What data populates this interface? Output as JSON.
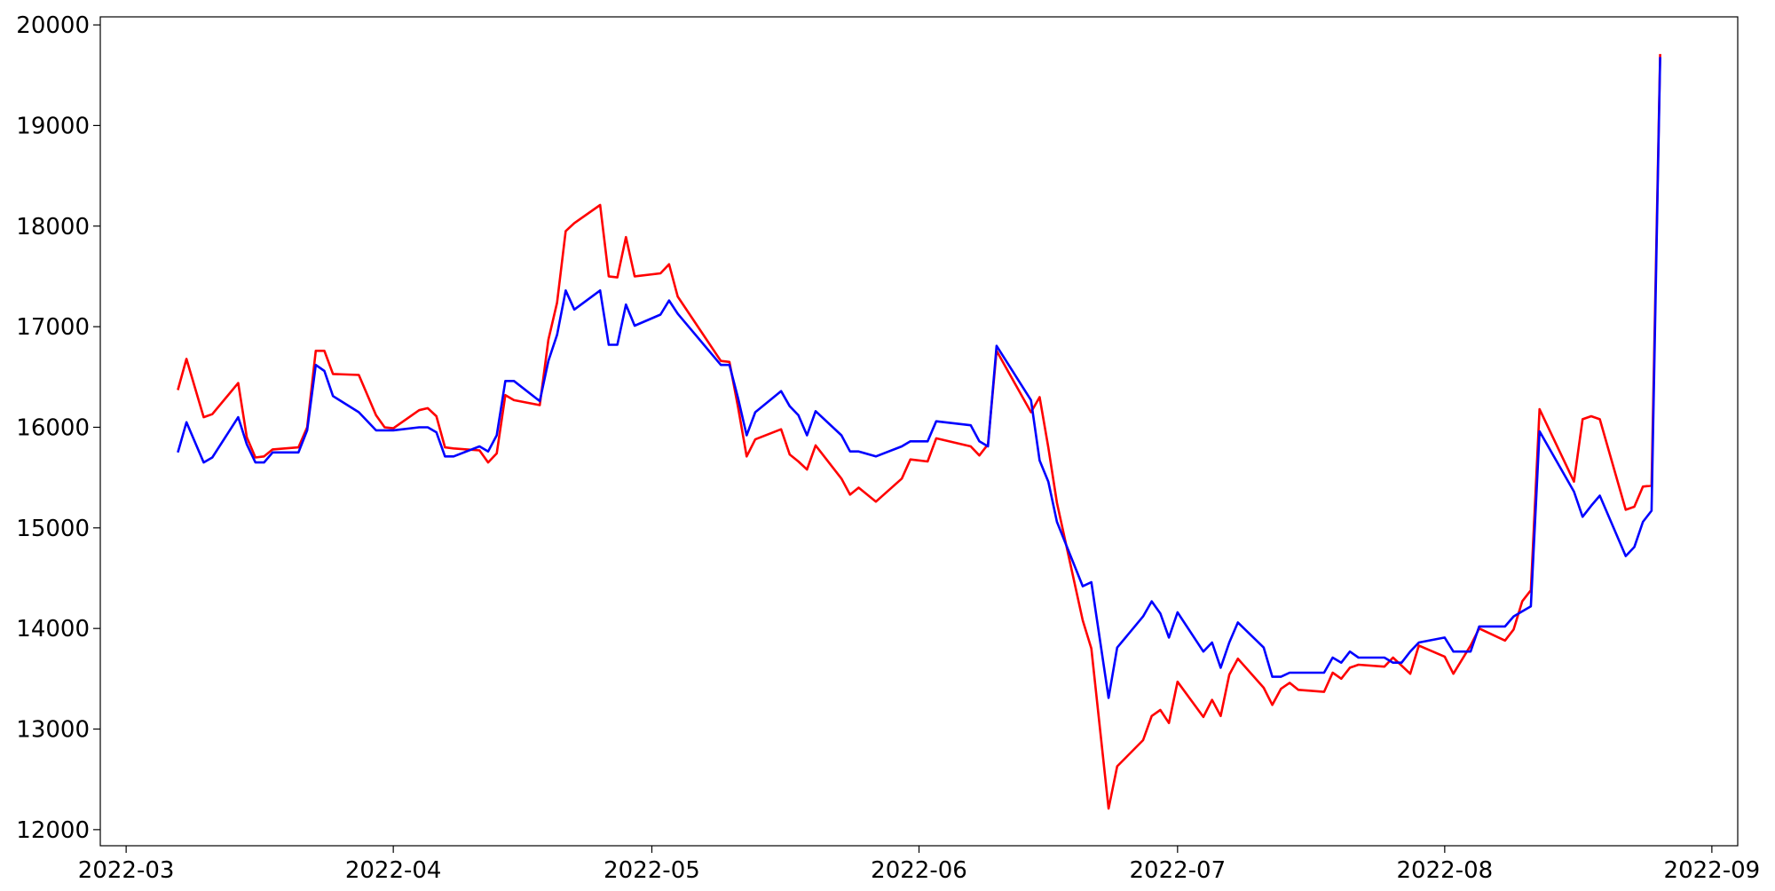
{
  "chart_data": {
    "type": "line",
    "x": [
      "2022-03-07",
      "2022-03-08",
      "2022-03-10",
      "2022-03-11",
      "2022-03-14",
      "2022-03-15",
      "2022-03-16",
      "2022-03-17",
      "2022-03-18",
      "2022-03-21",
      "2022-03-22",
      "2022-03-23",
      "2022-03-24",
      "2022-03-25",
      "2022-03-28",
      "2022-03-30",
      "2022-03-31",
      "2022-04-01",
      "2022-04-04",
      "2022-04-05",
      "2022-04-06",
      "2022-04-07",
      "2022-04-08",
      "2022-04-11",
      "2022-04-12",
      "2022-04-13",
      "2022-04-14",
      "2022-04-15",
      "2022-04-18",
      "2022-04-19",
      "2022-04-20",
      "2022-04-21",
      "2022-04-22",
      "2022-04-25",
      "2022-04-26",
      "2022-04-27",
      "2022-04-28",
      "2022-04-29",
      "2022-05-02",
      "2022-05-03",
      "2022-05-04",
      "2022-05-09",
      "2022-05-10",
      "2022-05-11",
      "2022-05-12",
      "2022-05-13",
      "2022-05-16",
      "2022-05-17",
      "2022-05-18",
      "2022-05-19",
      "2022-05-20",
      "2022-05-23",
      "2022-05-24",
      "2022-05-25",
      "2022-05-27",
      "2022-05-30",
      "2022-05-31",
      "2022-06-02",
      "2022-06-03",
      "2022-06-07",
      "2022-06-08",
      "2022-06-09",
      "2022-06-10",
      "2022-06-14",
      "2022-06-15",
      "2022-06-16",
      "2022-06-17",
      "2022-06-20",
      "2022-06-21",
      "2022-06-23",
      "2022-06-24",
      "2022-06-27",
      "2022-06-28",
      "2022-06-29",
      "2022-06-30",
      "2022-07-01",
      "2022-07-04",
      "2022-07-05",
      "2022-07-06",
      "2022-07-07",
      "2022-07-08",
      "2022-07-11",
      "2022-07-12",
      "2022-07-13",
      "2022-07-14",
      "2022-07-15",
      "2022-07-18",
      "2022-07-19",
      "2022-07-20",
      "2022-07-21",
      "2022-07-22",
      "2022-07-25",
      "2022-07-26",
      "2022-07-27",
      "2022-07-28",
      "2022-07-29",
      "2022-08-01",
      "2022-08-02",
      "2022-08-04",
      "2022-08-05",
      "2022-08-08",
      "2022-08-09",
      "2022-08-10",
      "2022-08-11",
      "2022-08-12",
      "2022-08-16",
      "2022-08-17",
      "2022-08-18",
      "2022-08-19",
      "2022-08-22",
      "2022-08-23",
      "2022-08-24",
      "2022-08-25",
      "2022-08-26"
    ],
    "series": [
      {
        "color": "#ff0000",
        "values": [
          16370,
          16680,
          16100,
          16130,
          16440,
          15900,
          15700,
          15710,
          15780,
          15800,
          16000,
          16760,
          16760,
          16530,
          16520,
          16120,
          16000,
          15990,
          16170,
          16190,
          16110,
          15800,
          15790,
          15770,
          15650,
          15740,
          16320,
          16270,
          16220,
          16870,
          17240,
          17950,
          18030,
          18210,
          17500,
          17490,
          17890,
          17500,
          17530,
          17620,
          17300,
          16660,
          16650,
          16200,
          15710,
          15880,
          15980,
          15730,
          15660,
          15580,
          15820,
          15490,
          15330,
          15400,
          15260,
          15490,
          15680,
          15660,
          15890,
          15810,
          15720,
          15830,
          16760,
          16150,
          16300,
          15800,
          15250,
          14080,
          13800,
          12210,
          12630,
          12890,
          13130,
          13190,
          13060,
          13470,
          13120,
          13290,
          13130,
          13540,
          13700,
          13410,
          13240,
          13400,
          13460,
          13390,
          13370,
          13560,
          13500,
          13610,
          13640,
          13620,
          13710,
          13630,
          13550,
          13830,
          13720,
          13550,
          13830,
          14000,
          13880,
          13990,
          14270,
          14380,
          16180,
          15460,
          16080,
          16110,
          16080,
          15180,
          15210,
          15410,
          15420,
          19710
        ]
      },
      {
        "color": "#0000ff",
        "values": [
          15750,
          16050,
          15650,
          15700,
          16100,
          15830,
          15650,
          15650,
          15750,
          15750,
          15970,
          16620,
          16560,
          16310,
          16150,
          15970,
          15970,
          15970,
          16000,
          16000,
          15950,
          15710,
          15710,
          15810,
          15760,
          15920,
          16460,
          16460,
          16260,
          16660,
          16920,
          17360,
          17170,
          17360,
          16820,
          16820,
          17220,
          17010,
          17120,
          17260,
          17130,
          16620,
          16620,
          16290,
          15920,
          16150,
          16360,
          16210,
          16120,
          15920,
          16160,
          15920,
          15760,
          15760,
          15710,
          15810,
          15860,
          15860,
          16060,
          16020,
          15860,
          15810,
          16810,
          16270,
          15670,
          15460,
          15060,
          14420,
          14460,
          13310,
          13810,
          14120,
          14270,
          14150,
          13910,
          14160,
          13770,
          13860,
          13610,
          13860,
          14060,
          13810,
          13520,
          13520,
          13560,
          13560,
          13560,
          13710,
          13660,
          13770,
          13710,
          13710,
          13660,
          13660,
          13770,
          13860,
          13910,
          13770,
          13770,
          14020,
          14020,
          14120,
          14170,
          14220,
          15960,
          15360,
          15110,
          15220,
          15320,
          14720,
          14810,
          15060,
          15170,
          19680
        ]
      }
    ],
    "xlim": [
      "2022-02-26",
      "2022-09-04"
    ],
    "xticks": [
      {
        "value": "2022-03-01",
        "label": "2022-03"
      },
      {
        "value": "2022-04-01",
        "label": "2022-04"
      },
      {
        "value": "2022-05-01",
        "label": "2022-05"
      },
      {
        "value": "2022-06-01",
        "label": "2022-06"
      },
      {
        "value": "2022-07-01",
        "label": "2022-07"
      },
      {
        "value": "2022-08-01",
        "label": "2022-08"
      },
      {
        "value": "2022-09-01",
        "label": "2022-09"
      }
    ],
    "ylim": [
      11840,
      20080
    ],
    "yticks": [
      12000,
      13000,
      14000,
      15000,
      16000,
      17000,
      18000,
      19000,
      20000
    ]
  }
}
